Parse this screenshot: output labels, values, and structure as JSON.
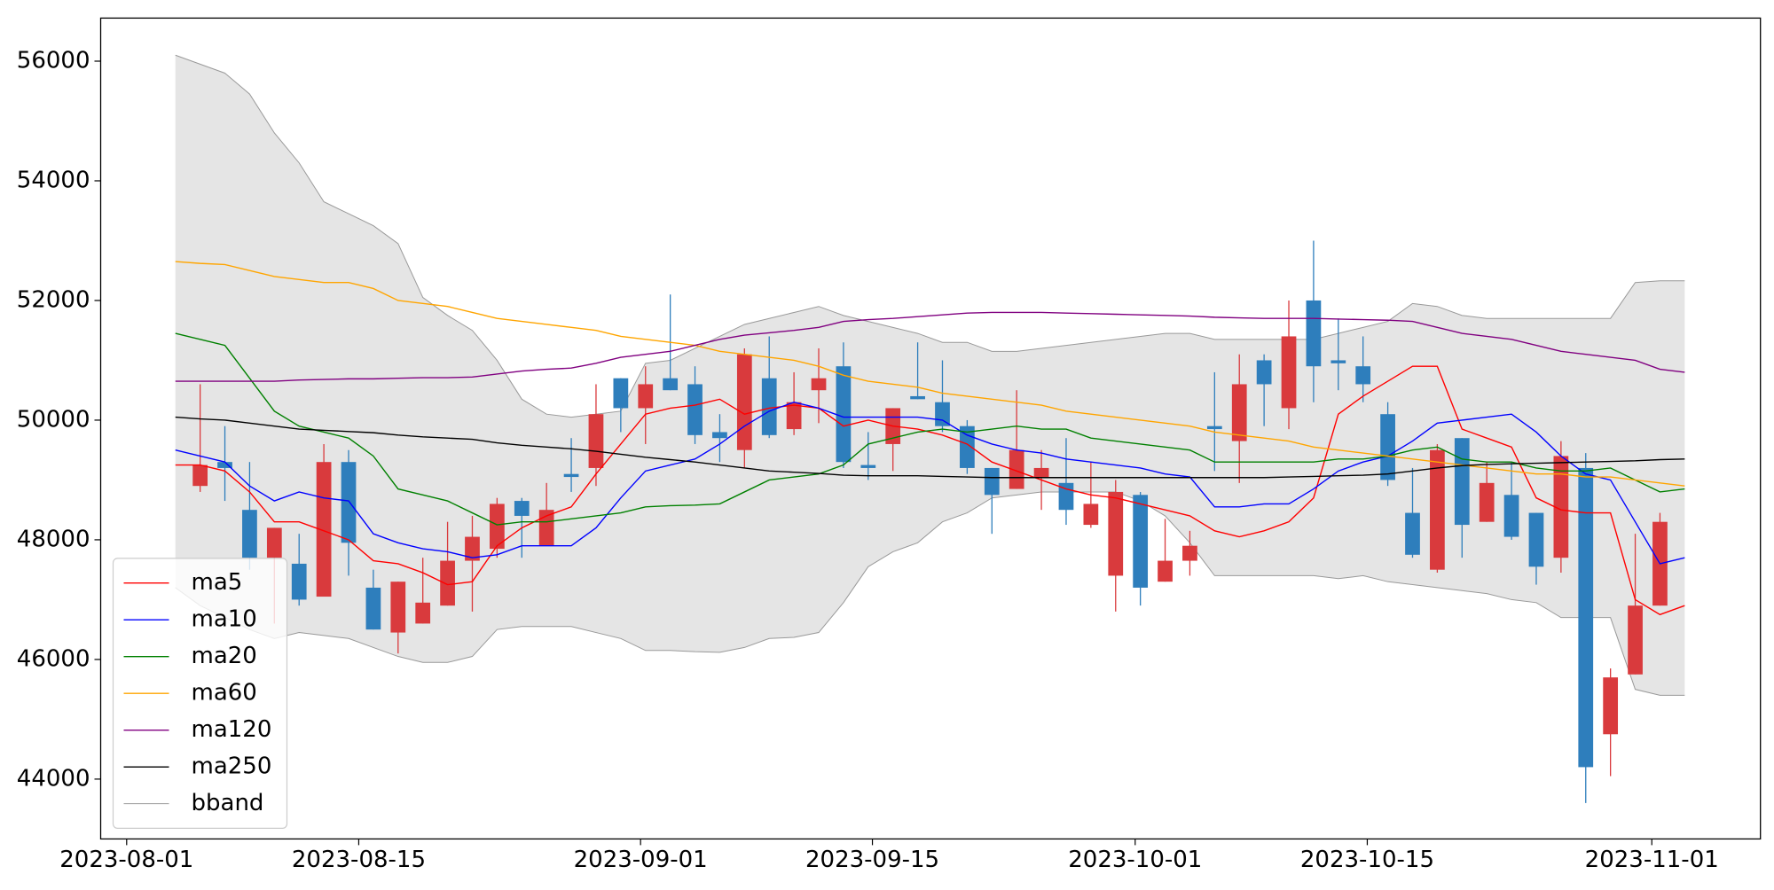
{
  "chart_data": {
    "type": "candlestick",
    "xlim": [
      -3.02,
      64.06
    ],
    "xticks": [
      {
        "value": -1.97,
        "label": "2023-08-01"
      },
      {
        "value": 7.41,
        "label": "2023-08-15"
      },
      {
        "value": 18.8,
        "label": "2023-09-01"
      },
      {
        "value": 28.17,
        "label": "2023-09-15"
      },
      {
        "value": 38.79,
        "label": "2023-10-01"
      },
      {
        "value": 48.17,
        "label": "2023-10-15"
      },
      {
        "value": 59.67,
        "label": "2023-11-01"
      }
    ],
    "ylim": [
      43000,
      56720
    ],
    "yticks": [
      44000,
      46000,
      48000,
      50000,
      52000,
      54000,
      56000
    ],
    "up_color": "#d93a3d",
    "down_color": "#2e7ebc",
    "legend": "lower left",
    "open": [
      null,
      48900,
      49300,
      48500,
      47700,
      47600,
      47050,
      49300,
      47200,
      46450,
      46600,
      46900,
      47650,
      47850,
      48650,
      47900,
      49100,
      49200,
      50700,
      50200,
      50700,
      50600,
      49800,
      49500,
      50700,
      49850,
      50500,
      50900,
      49250,
      49600,
      50400,
      50300,
      49900,
      49200,
      48850,
      49050,
      48950,
      48250,
      47400,
      48750,
      47300,
      47650,
      49900,
      49650,
      51000,
      50200,
      52000,
      51000,
      50900,
      50100,
      48450,
      47500,
      49700,
      48300,
      48750,
      48450,
      47700,
      49200,
      44750,
      45750,
      46900,
      null
    ],
    "high": [
      null,
      50600,
      49900,
      49300,
      48200,
      48100,
      49600,
      49500,
      47500,
      47300,
      47700,
      48300,
      48400,
      48700,
      48700,
      48950,
      49700,
      50600,
      50700,
      50900,
      52100,
      50900,
      50100,
      51200,
      51400,
      50800,
      51200,
      51300,
      49800,
      50200,
      51300,
      51000,
      50000,
      49200,
      50500,
      49500,
      49700,
      49300,
      49000,
      48800,
      48350,
      48150,
      50800,
      51100,
      51100,
      52000,
      53000,
      51700,
      51400,
      50300,
      49200,
      49600,
      49700,
      49300,
      49300,
      48450,
      49650,
      49450,
      45850,
      48100,
      48450,
      null
    ],
    "low": [
      null,
      48800,
      48650,
      47500,
      46600,
      46900,
      47050,
      47400,
      46500,
      46100,
      46600,
      46900,
      46800,
      47700,
      47700,
      47900,
      48800,
      48900,
      49800,
      49600,
      50500,
      49600,
      49300,
      49200,
      49700,
      49750,
      49950,
      49200,
      49000,
      49150,
      50350,
      49800,
      49100,
      48100,
      48850,
      48500,
      48250,
      48200,
      46800,
      46900,
      47300,
      47400,
      49150,
      48950,
      49900,
      49850,
      50300,
      50500,
      50300,
      48900,
      47700,
      47450,
      47700,
      48300,
      48000,
      47250,
      47450,
      43600,
      44050,
      45750,
      46900,
      null
    ],
    "close": [
      null,
      49250,
      49200,
      47700,
      48200,
      47000,
      49300,
      47950,
      46500,
      47300,
      46950,
      47650,
      48050,
      48600,
      48400,
      48500,
      49050,
      50100,
      50200,
      50600,
      50500,
      49750,
      49700,
      51100,
      49750,
      50300,
      50700,
      49300,
      49200,
      50200,
      50350,
      49900,
      49200,
      48750,
      49500,
      49200,
      48500,
      48600,
      48800,
      47200,
      47650,
      47900,
      49850,
      50600,
      50600,
      51400,
      50900,
      50950,
      50600,
      49000,
      47750,
      49500,
      48250,
      48950,
      48050,
      47550,
      49400,
      44200,
      45700,
      46900,
      48300,
      null
    ],
    "lines": [
      {
        "name": "ma5",
        "color": "#ff0000",
        "values": [
          49250,
          49250,
          49150,
          48800,
          48300,
          48300,
          48150,
          48000,
          47650,
          47600,
          47450,
          47250,
          47300,
          47900,
          48200,
          48400,
          48550,
          49100,
          49600,
          50100,
          50200,
          50250,
          50350,
          50100,
          50200,
          50250,
          50200,
          49900,
          50000,
          49900,
          49850,
          49750,
          49600,
          49300,
          49150,
          49000,
          48850,
          48750,
          48700,
          48600,
          48500,
          48400,
          48150,
          48050,
          48150,
          48300,
          48700,
          50100,
          50400,
          50650,
          50900,
          50900,
          49850,
          49700,
          49550,
          48700,
          48500,
          48450,
          48450,
          47000,
          46750,
          46900
        ]
      },
      {
        "name": "ma10",
        "color": "#0000ff",
        "values": [
          49500,
          49400,
          49300,
          48900,
          48650,
          48800,
          48700,
          48650,
          48100,
          47950,
          47850,
          47800,
          47700,
          47750,
          47900,
          47900,
          47900,
          48200,
          48700,
          49150,
          49250,
          49350,
          49600,
          49900,
          50150,
          50300,
          50200,
          50050,
          50050,
          50050,
          50050,
          50000,
          49750,
          49600,
          49500,
          49450,
          49350,
          49300,
          49250,
          49200,
          49100,
          49050,
          48550,
          48550,
          48600,
          48600,
          48850,
          49150,
          49300,
          49400,
          49650,
          49950,
          50000,
          50050,
          50100,
          49800,
          49400,
          49100,
          49000,
          48300,
          47600,
          47700
        ]
      },
      {
        "name": "ma20",
        "color": "#008000",
        "values": [
          51450,
          51350,
          51250,
          50700,
          50150,
          49900,
          49800,
          49700,
          49400,
          48850,
          48750,
          48650,
          48450,
          48250,
          48300,
          48300,
          48350,
          48400,
          48450,
          48550,
          48570,
          48580,
          48600,
          48800,
          49000,
          49050,
          49100,
          49250,
          49600,
          49700,
          49800,
          49850,
          49800,
          49850,
          49900,
          49850,
          49850,
          49700,
          49650,
          49600,
          49550,
          49500,
          49300,
          49300,
          49300,
          49300,
          49300,
          49350,
          49350,
          49400,
          49500,
          49550,
          49350,
          49300,
          49300,
          49200,
          49150,
          49150,
          49200,
          49000,
          48800,
          48850
        ]
      },
      {
        "name": "ma60",
        "color": "#ffa500",
        "values": [
          52650,
          52620,
          52600,
          52500,
          52400,
          52350,
          52300,
          52300,
          52200,
          52000,
          51950,
          51900,
          51800,
          51700,
          51650,
          51600,
          51550,
          51500,
          51400,
          51350,
          51300,
          51250,
          51150,
          51100,
          51050,
          51000,
          50900,
          50750,
          50650,
          50600,
          50550,
          50450,
          50400,
          50350,
          50300,
          50250,
          50150,
          50100,
          50050,
          50000,
          49950,
          49900,
          49800,
          49750,
          49700,
          49650,
          49550,
          49500,
          49450,
          49400,
          49350,
          49300,
          49250,
          49200,
          49150,
          49100,
          49100,
          49050,
          49050,
          49000,
          48950,
          48900
        ]
      },
      {
        "name": "ma120",
        "color": "#800080",
        "values": [
          50650,
          50650,
          50650,
          50650,
          50650,
          50670,
          50680,
          50690,
          50690,
          50700,
          50710,
          50710,
          50720,
          50770,
          50820,
          50850,
          50870,
          50950,
          51050,
          51100,
          51150,
          51250,
          51350,
          51420,
          51460,
          51500,
          51550,
          51650,
          51680,
          51700,
          51730,
          51760,
          51790,
          51800,
          51800,
          51800,
          51790,
          51780,
          51770,
          51760,
          51750,
          51740,
          51720,
          51710,
          51700,
          51700,
          51700,
          51690,
          51680,
          51670,
          51650,
          51550,
          51450,
          51400,
          51350,
          51250,
          51150,
          51100,
          51050,
          51000,
          50850,
          50800
        ]
      },
      {
        "name": "ma250",
        "color": "#000000",
        "values": [
          50050,
          50020,
          50000,
          49950,
          49900,
          49850,
          49830,
          49810,
          49790,
          49750,
          49720,
          49700,
          49680,
          49620,
          49580,
          49550,
          49520,
          49480,
          49430,
          49380,
          49340,
          49300,
          49250,
          49200,
          49150,
          49130,
          49110,
          49080,
          49070,
          49070,
          49070,
          49060,
          49050,
          49040,
          49040,
          49040,
          49040,
          49040,
          49040,
          49040,
          49040,
          49040,
          49040,
          49040,
          49040,
          49050,
          49060,
          49070,
          49080,
          49100,
          49150,
          49200,
          49240,
          49260,
          49270,
          49280,
          49290,
          49300,
          49310,
          49320,
          49340,
          49350
        ]
      }
    ],
    "bband": {
      "name": "bband",
      "color": "#999999",
      "fill": "#e5e5e5",
      "upper": [
        56100,
        55950,
        55800,
        55450,
        54800,
        54300,
        53650,
        53450,
        53250,
        52950,
        52050,
        51750,
        51500,
        51000,
        50350,
        50100,
        50050,
        50100,
        50150,
        50950,
        51000,
        51200,
        51400,
        51600,
        51700,
        51800,
        51900,
        51750,
        51650,
        51550,
        51450,
        51300,
        51300,
        51150,
        51150,
        51200,
        51250,
        51300,
        51350,
        51400,
        51450,
        51450,
        51350,
        51350,
        51350,
        51350,
        51350,
        51450,
        51550,
        51650,
        51950,
        51900,
        51750,
        51700,
        51700,
        51700,
        51700,
        51700,
        51700,
        52300,
        52330,
        52330
      ],
      "lower": [
        47200,
        46900,
        46700,
        46500,
        46350,
        46450,
        46400,
        46350,
        46200,
        46050,
        45950,
        45950,
        46050,
        46500,
        46550,
        46550,
        46550,
        46450,
        46350,
        46150,
        46150,
        46130,
        46120,
        46200,
        46350,
        46370,
        46450,
        46950,
        47550,
        47800,
        47950,
        48300,
        48450,
        48700,
        48750,
        48800,
        48800,
        48800,
        48800,
        48650,
        48400,
        47950,
        47400,
        47400,
        47400,
        47400,
        47400,
        47350,
        47400,
        47300,
        47250,
        47200,
        47150,
        47100,
        47000,
        46950,
        46700,
        46700,
        46700,
        45500,
        45400,
        45400
      ]
    }
  }
}
